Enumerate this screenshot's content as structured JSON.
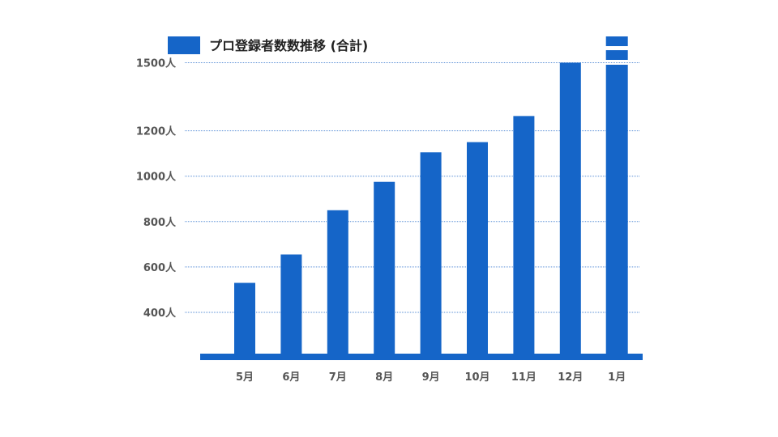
{
  "chart_data": {
    "type": "bar",
    "title": "",
    "xlabel": "",
    "ylabel": "",
    "legend": {
      "label": "プロ登録者数数推移 (合計)",
      "position": "top-left"
    },
    "categories": [
      "5月",
      "6月",
      "7月",
      "8月",
      "9月",
      "10月",
      "11月",
      "12月",
      "1月"
    ],
    "series": [
      {
        "name": "プロ登録者数数推移 (合計)",
        "values": [
          530,
          655,
          850,
          975,
          1105,
          1150,
          1265,
          1500,
          1675
        ]
      }
    ],
    "y_ticks": [
      {
        "value": 400,
        "label": "400人"
      },
      {
        "value": 600,
        "label": "600人"
      },
      {
        "value": 800,
        "label": "800人"
      },
      {
        "value": 1000,
        "label": "1000人"
      },
      {
        "value": 1200,
        "label": "1200人"
      },
      {
        "value": 1500,
        "label": "1500人"
      }
    ],
    "ylim": [
      215,
      1710
    ],
    "axis_break": "last-bar",
    "grid": true,
    "bar_color": "#1565c8",
    "grid_color": "#5a8fd6"
  }
}
